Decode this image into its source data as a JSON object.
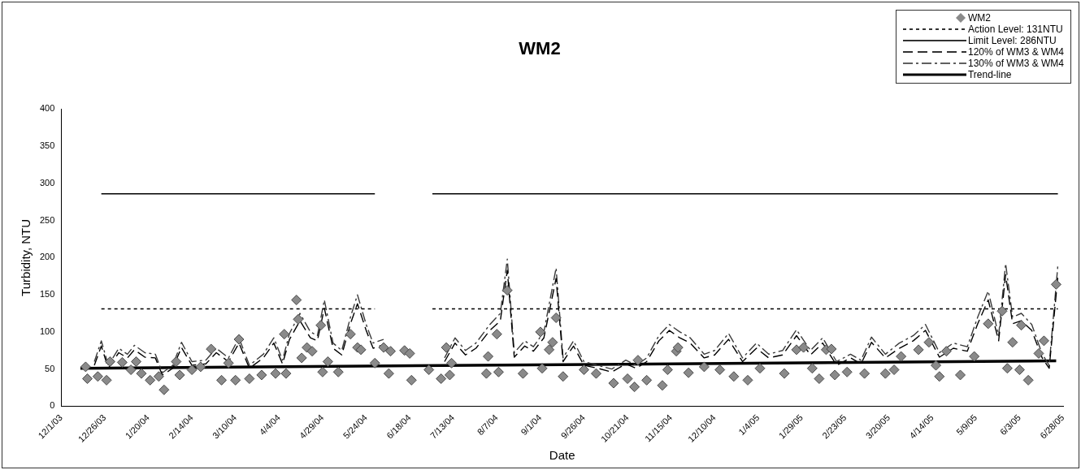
{
  "chart_data": {
    "type": "line",
    "title": "WM2",
    "xlabel": "Date",
    "ylabel": "Turbidity, NTU",
    "legend": "top right",
    "xlim": [
      "2003-12-01",
      "2005-06-28"
    ],
    "xticks": [
      {
        "value": "2003-12-01",
        "label": "12/1/03"
      },
      {
        "value": "2003-12-26",
        "label": "12/26/03"
      },
      {
        "value": "2004-01-20",
        "label": "1/20/04"
      },
      {
        "value": "2004-02-14",
        "label": "2/14/04"
      },
      {
        "value": "2004-03-10",
        "label": "3/10/04"
      },
      {
        "value": "2004-04-04",
        "label": "4/4/04"
      },
      {
        "value": "2004-04-29",
        "label": "4/29/04"
      },
      {
        "value": "2004-05-24",
        "label": "5/24/04"
      },
      {
        "value": "2004-06-18",
        "label": "6/18/04"
      },
      {
        "value": "2004-07-13",
        "label": "7/13/04"
      },
      {
        "value": "2004-08-07",
        "label": "8/7/04"
      },
      {
        "value": "2004-09-01",
        "label": "9/1/04"
      },
      {
        "value": "2004-09-26",
        "label": "9/26/04"
      },
      {
        "value": "2004-10-21",
        "label": "10/21/04"
      },
      {
        "value": "2004-11-15",
        "label": "11/15/04"
      },
      {
        "value": "2004-12-10",
        "label": "12/10/04"
      },
      {
        "value": "2005-01-04",
        "label": "1/4/05"
      },
      {
        "value": "2005-01-29",
        "label": "1/29/05"
      },
      {
        "value": "2005-02-23",
        "label": "2/23/05"
      },
      {
        "value": "2005-03-20",
        "label": "3/20/05"
      },
      {
        "value": "2005-04-14",
        "label": "4/14/05"
      },
      {
        "value": "2005-05-09",
        "label": "5/9/05"
      },
      {
        "value": "2005-06-03",
        "label": "6/3/05"
      },
      {
        "value": "2005-06-28",
        "label": "6/28/05"
      }
    ],
    "ylim": [
      0,
      400
    ],
    "yticks": [
      0,
      50,
      100,
      150,
      200,
      250,
      300,
      350,
      400
    ],
    "series": [
      {
        "name": "WM2",
        "type": "scatter",
        "color": "#8a8a8a",
        "marker": "diamond",
        "x": [
          "2003-12-15",
          "2003-12-16",
          "2003-12-22",
          "2003-12-27",
          "2003-12-29",
          "2004-01-05",
          "2004-01-10",
          "2004-01-13",
          "2004-01-16",
          "2004-01-21",
          "2004-01-26",
          "2004-01-29",
          "2004-02-05",
          "2004-02-07",
          "2004-02-14",
          "2004-02-19",
          "2004-02-25",
          "2004-03-02",
          "2004-03-06",
          "2004-03-10",
          "2004-03-12",
          "2004-03-18",
          "2004-03-25",
          "2004-04-02",
          "2004-04-07",
          "2004-04-08",
          "2004-04-14",
          "2004-04-15",
          "2004-04-17",
          "2004-04-20",
          "2004-04-23",
          "2004-04-28",
          "2004-04-29",
          "2004-05-02",
          "2004-05-08",
          "2004-05-15",
          "2004-05-19",
          "2004-05-21",
          "2004-05-29",
          "2004-06-03",
          "2004-06-06",
          "2004-06-07",
          "2004-06-15",
          "2004-06-18",
          "2004-06-19",
          "2004-06-29",
          "2004-07-06",
          "2004-07-09",
          "2004-07-11",
          "2004-07-12",
          "2004-08-01",
          "2004-08-02",
          "2004-08-07",
          "2004-08-08",
          "2004-08-13",
          "2004-08-22",
          "2004-09-01",
          "2004-09-02",
          "2004-09-06",
          "2004-09-08",
          "2004-09-10",
          "2004-09-14",
          "2004-09-26",
          "2004-10-03",
          "2004-10-13",
          "2004-10-21",
          "2004-10-25",
          "2004-10-27",
          "2004-11-01",
          "2004-11-10",
          "2004-11-13",
          "2004-11-18",
          "2004-11-19",
          "2004-11-25",
          "2004-12-04",
          "2004-12-13",
          "2004-12-21",
          "2004-12-29",
          "2005-01-05",
          "2005-01-19",
          "2005-01-26",
          "2005-01-30",
          "2005-02-04",
          "2005-02-08",
          "2005-02-12",
          "2005-02-15",
          "2005-02-17",
          "2005-02-24",
          "2005-03-06",
          "2005-03-18",
          "2005-03-23",
          "2005-03-27",
          "2005-04-06",
          "2005-04-12",
          "2005-04-16",
          "2005-04-18",
          "2005-04-22",
          "2005-04-30",
          "2005-05-08",
          "2005-05-16",
          "2005-05-24",
          "2005-05-27",
          "2005-05-30",
          "2005-06-03",
          "2005-06-04",
          "2005-06-08",
          "2005-06-14",
          "2005-06-17",
          "2005-06-24"
        ],
        "values": [
          53,
          37,
          40,
          35,
          60,
          59,
          49,
          60,
          44,
          35,
          40,
          22,
          60,
          42,
          49,
          53,
          77,
          35,
          58,
          35,
          90,
          37,
          42,
          44,
          97,
          44,
          143,
          117,
          65,
          79,
          74,
          109,
          46,
          60,
          46,
          97,
          79,
          76,
          58,
          79,
          44,
          74,
          75,
          71,
          35,
          49,
          37,
          79,
          42,
          58,
          44,
          67,
          97,
          46,
          156,
          44,
          100,
          51,
          76,
          86,
          119,
          40,
          49,
          44,
          31,
          37,
          26,
          62,
          35,
          28,
          49,
          74,
          79,
          45,
          53,
          49,
          40,
          35,
          51,
          44,
          76,
          79,
          51,
          37,
          76,
          77,
          42,
          46,
          44,
          44,
          49,
          67,
          76,
          86,
          55,
          40,
          74,
          42,
          67,
          111,
          128,
          51,
          86,
          49,
          109,
          35,
          71,
          88,
          164
        ]
      },
      {
        "name": "Action Level: 131NTU",
        "color": "#000000",
        "line_style": "dotted",
        "marker": "none",
        "x": [
          "2003-12-24",
          "2004-05-29",
          "2004-06-15",
          "2004-07-01",
          "2005-06-25"
        ],
        "values": [
          131,
          131,
          null,
          131,
          131
        ]
      },
      {
        "name": "Limit Level: 286NTU",
        "color": "#000000",
        "line_style": "solid",
        "marker": "none",
        "x": [
          "2003-12-24",
          "2004-05-29",
          "2004-06-15",
          "2004-07-01",
          "2005-06-25"
        ],
        "values": [
          286,
          286,
          null,
          286,
          286
        ]
      },
      {
        "name": "120% of WM3 & WM4",
        "color": "#000000",
        "line_style": "dashed",
        "marker": "none",
        "x": [
          "2003-12-20",
          "2003-12-24",
          "2003-12-28",
          "2004-01-03",
          "2004-01-08",
          "2004-01-12",
          "2004-01-18",
          "2004-01-24",
          "2004-01-28",
          "2004-02-03",
          "2004-02-08",
          "2004-02-14",
          "2004-02-22",
          "2004-02-28",
          "2004-03-06",
          "2004-03-12",
          "2004-03-18",
          "2004-03-26",
          "2004-04-01",
          "2004-04-06",
          "2004-04-10",
          "2004-04-16",
          "2004-04-22",
          "2004-04-26",
          "2004-04-30",
          "2004-05-05",
          "2004-05-10",
          "2004-05-15",
          "2004-05-19",
          "2004-05-24",
          "2004-05-28",
          "2004-06-03",
          "2004-06-15",
          "2004-07-08",
          "2004-07-14",
          "2004-07-20",
          "2004-07-26",
          "2004-08-03",
          "2004-08-09",
          "2004-08-13",
          "2004-08-17",
          "2004-08-23",
          "2004-08-28",
          "2004-09-03",
          "2004-09-10",
          "2004-09-14",
          "2004-09-20",
          "2004-09-26",
          "2004-10-04",
          "2004-10-12",
          "2004-10-20",
          "2004-10-26",
          "2004-11-01",
          "2004-11-08",
          "2004-11-14",
          "2004-11-20",
          "2004-11-26",
          "2004-12-04",
          "2004-12-10",
          "2004-12-18",
          "2004-12-26",
          "2005-01-03",
          "2005-01-10",
          "2005-01-18",
          "2005-01-26",
          "2005-02-03",
          "2005-02-10",
          "2005-02-18",
          "2005-02-26",
          "2005-03-04",
          "2005-03-10",
          "2005-03-18",
          "2005-03-26",
          "2005-04-03",
          "2005-04-10",
          "2005-04-18",
          "2005-04-26",
          "2005-05-04",
          "2005-05-10",
          "2005-05-16",
          "2005-05-22",
          "2005-05-26",
          "2005-05-30",
          "2005-06-04",
          "2005-06-10",
          "2005-06-16",
          "2005-06-20",
          "2005-06-25"
        ],
        "values": [
          55,
          81,
          51,
          72,
          65,
          76,
          66,
          65,
          42,
          51,
          79,
          55,
          57,
          72,
          60,
          85,
          51,
          65,
          85,
          57,
          90,
          115,
          92,
          88,
          132,
          78,
          69,
          111,
          138,
          102,
          78,
          83,
          null,
          60,
          85,
          69,
          78,
          102,
          115,
          183,
          66,
          81,
          74,
          92,
          172,
          60,
          81,
          55,
          51,
          46,
          57,
          51,
          60,
          88,
          102,
          92,
          85,
          65,
          69,
          90,
          60,
          78,
          65,
          69,
          95,
          69,
          85,
          55,
          65,
          57,
          86,
          65,
          78,
          88,
          102,
          66,
          78,
          74,
          111,
          143,
          88,
          177,
          111,
          115,
          102,
          65,
          51,
          175
        ]
      },
      {
        "name": "130% of WM3 & WM4",
        "color": "#3a3a3a",
        "line_style": "dashed",
        "marker": "none",
        "x": [
          "2003-12-20",
          "2003-12-24",
          "2003-12-28",
          "2004-01-03",
          "2004-01-08",
          "2004-01-12",
          "2004-01-18",
          "2004-01-24",
          "2004-01-28",
          "2004-02-03",
          "2004-02-08",
          "2004-02-14",
          "2004-02-22",
          "2004-02-28",
          "2004-03-06",
          "2004-03-12",
          "2004-03-18",
          "2004-03-26",
          "2004-04-01",
          "2004-04-06",
          "2004-04-10",
          "2004-04-16",
          "2004-04-22",
          "2004-04-26",
          "2004-04-30",
          "2004-05-05",
          "2004-05-10",
          "2004-05-15",
          "2004-05-19",
          "2004-05-24",
          "2004-05-28",
          "2004-06-03",
          "2004-06-15",
          "2004-07-08",
          "2004-07-14",
          "2004-07-20",
          "2004-07-26",
          "2004-08-03",
          "2004-08-09",
          "2004-08-13",
          "2004-08-17",
          "2004-08-23",
          "2004-08-28",
          "2004-09-03",
          "2004-09-10",
          "2004-09-14",
          "2004-09-20",
          "2004-09-26",
          "2004-10-04",
          "2004-10-12",
          "2004-10-20",
          "2004-10-26",
          "2004-11-01",
          "2004-11-08",
          "2004-11-14",
          "2004-11-20",
          "2004-11-26",
          "2004-12-04",
          "2004-12-10",
          "2004-12-18",
          "2004-12-26",
          "2005-01-03",
          "2005-01-10",
          "2005-01-18",
          "2005-01-26",
          "2005-02-03",
          "2005-02-10",
          "2005-02-18",
          "2005-02-26",
          "2005-03-04",
          "2005-03-10",
          "2005-03-18",
          "2005-03-26",
          "2005-04-03",
          "2005-04-10",
          "2005-04-18",
          "2005-04-26",
          "2005-05-04",
          "2005-05-10",
          "2005-05-16",
          "2005-05-22",
          "2005-05-26",
          "2005-05-30",
          "2005-06-04",
          "2005-06-10",
          "2005-06-16",
          "2005-06-20",
          "2005-06-25"
        ],
        "values": [
          60,
          88,
          55,
          78,
          70,
          82,
          72,
          70,
          45,
          55,
          86,
          60,
          62,
          78,
          65,
          92,
          55,
          70,
          92,
          62,
          98,
          125,
          100,
          95,
          143,
          85,
          75,
          120,
          150,
          110,
          85,
          90,
          null,
          65,
          92,
          75,
          85,
          110,
          125,
          198,
          72,
          88,
          80,
          100,
          186,
          65,
          88,
          60,
          55,
          50,
          62,
          55,
          65,
          95,
          110,
          100,
          92,
          70,
          75,
          98,
          65,
          85,
          70,
          75,
          103,
          75,
          92,
          60,
          70,
          62,
          93,
          70,
          85,
          95,
          110,
          72,
          85,
          80,
          120,
          155,
          95,
          192,
          120,
          125,
          110,
          70,
          55,
          190
        ]
      },
      {
        "name": "Trend-line",
        "color": "#000000",
        "line_style": "solid",
        "marker": "none",
        "x": [
          "2003-12-12",
          "2005-06-24"
        ],
        "values": [
          51,
          61
        ]
      }
    ]
  }
}
